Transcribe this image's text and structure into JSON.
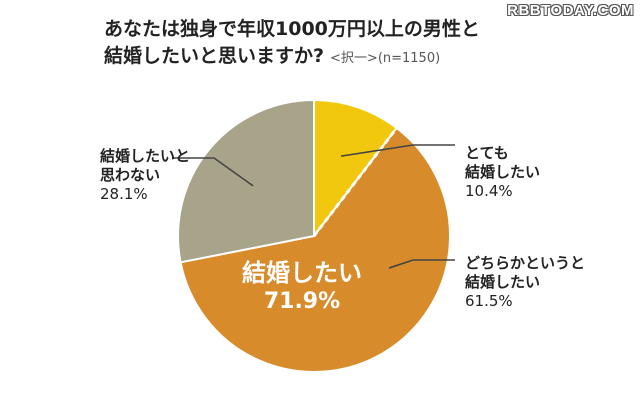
{
  "watermark": "RBBTODAY.COM",
  "title": {
    "line1": "あなたは独身で年収1000万円以上の男性と",
    "line2": "結婚したいと思いますか?",
    "sub": "<択一>(n=1150)"
  },
  "chart_data": {
    "type": "pie",
    "title": "あなたは独身で年収1000万円以上の男性と結婚したいと思いますか?",
    "n": 1150,
    "slices": [
      {
        "name": "とても結婚したい",
        "value": 10.4,
        "label": "とても\n結婚したい",
        "pct": "10.4%",
        "color": "#F2C80F"
      },
      {
        "name": "どちらかというと結婚したい",
        "value": 61.5,
        "label": "どちらかというと\n結婚したい",
        "pct": "61.5%",
        "color": "#D88B2B"
      },
      {
        "name": "結婚したいと思わない",
        "value": 28.1,
        "label": "結婚したいと\n思わない",
        "pct": "28.1%",
        "color": "#A8A48A"
      }
    ],
    "group": {
      "name": "結婚したい",
      "value": 71.9,
      "pct": "71.9%"
    }
  }
}
